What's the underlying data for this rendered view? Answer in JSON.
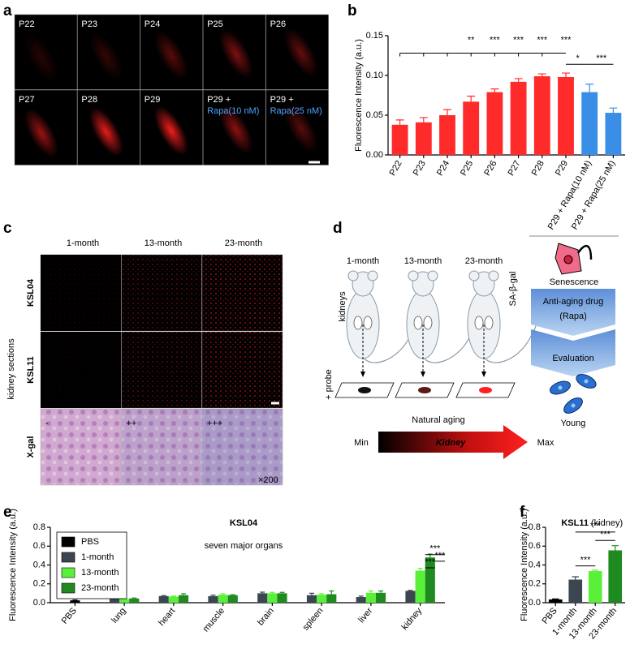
{
  "figure": {
    "panel_labels": [
      "a",
      "b",
      "c",
      "d",
      "e",
      "f"
    ],
    "panel_a": {
      "tiles": [
        [
          "P22"
        ],
        [
          "P23"
        ],
        [
          "P24"
        ],
        [
          "P25"
        ],
        [
          "P26"
        ],
        [
          "P27"
        ],
        [
          "P28"
        ],
        [
          "P29"
        ],
        [
          "P29 +",
          "Rapa(10 nM)"
        ],
        [
          "P29 +",
          "Rapa(25 nM)"
        ]
      ]
    },
    "panel_c": {
      "columns": [
        "1-month",
        "13-month",
        "23-month"
      ],
      "rows": [
        "KSL04",
        "KSL11",
        "X-gal"
      ],
      "side_label": "kidney sections",
      "xgal_marks": [
        "-",
        "++",
        "+++"
      ],
      "magnification": "×200"
    },
    "panel_d": {
      "columns": [
        "1-month",
        "13-month",
        "23-month"
      ],
      "kidneys": "kidneys",
      "marker": "SA-β-gal",
      "probe": "+ probe",
      "natural_aging": "Natural aging",
      "min": "Min",
      "organ": "Kidney",
      "max": "Max",
      "senescence": "Senescence",
      "drug": "Anti-aging drug",
      "drug_name": "(Rapa)",
      "evaluation": "Evaluation",
      "young": "Young"
    }
  },
  "chart_data": [
    {
      "type": "bar",
      "y_label": "Fluorescence Intensity (a.u.)",
      "categories": [
        "P22",
        "P23",
        "P24",
        "P25",
        "P26",
        "P27",
        "P28",
        "P29",
        "P29 + Rapa(10 nM)",
        "P29 + Rapa(25 nM)"
      ],
      "values": [
        0.038,
        0.041,
        0.05,
        0.067,
        0.079,
        0.092,
        0.099,
        0.098,
        0.079,
        0.053
      ],
      "errors": [
        0.006,
        0.006,
        0.007,
        0.007,
        0.004,
        0.004,
        0.003,
        0.005,
        0.01,
        0.006
      ],
      "colors": [
        "#ff2b2b",
        "#ff2b2b",
        "#ff2b2b",
        "#ff2b2b",
        "#ff2b2b",
        "#ff2b2b",
        "#ff2b2b",
        "#ff2b2b",
        "#3a8ee6",
        "#3a8ee6"
      ],
      "ylim": [
        0,
        0.15
      ],
      "yticks": [
        {
          "value": 0,
          "label": "0.00"
        },
        {
          "value": 0.05,
          "label": "0.05"
        },
        {
          "value": 0.1,
          "label": "0.10"
        },
        {
          "value": 0.15,
          "label": "0.15"
        }
      ],
      "annotations": [
        "**",
        "***",
        "***",
        "***",
        "***",
        "*",
        "***"
      ]
    },
    {
      "type": "grouped_bar",
      "title": "KSL04",
      "subtitle": "seven major organs",
      "y_label": "Fluorescence Intensity (a.u.)",
      "categories": [
        "PBS",
        "lung",
        "heart",
        "muscle",
        "brain",
        "spleen",
        "liver",
        "kidney"
      ],
      "series": [
        {
          "name": "PBS",
          "color": "#000000",
          "values": [
            0.025,
            null,
            null,
            null,
            null,
            null,
            null,
            null
          ],
          "errors": [
            0.003,
            null,
            null,
            null,
            null,
            null,
            null,
            null
          ]
        },
        {
          "name": "1-month",
          "color": "#3b4650",
          "values": [
            null,
            0.06,
            0.07,
            0.07,
            0.1,
            0.08,
            0.06,
            0.125
          ],
          "errors": [
            null,
            0.01,
            0.005,
            0.01,
            0.012,
            0.02,
            0.01,
            0.005
          ]
        },
        {
          "name": "13-month",
          "color": "#5af03a",
          "values": [
            null,
            0.04,
            0.065,
            0.085,
            0.1,
            0.085,
            0.105,
            0.34
          ],
          "errors": [
            null,
            0.005,
            0.005,
            0.01,
            0.01,
            0.01,
            0.02,
            0.025
          ]
        },
        {
          "name": "23-month",
          "color": "#1f8a1f",
          "values": [
            null,
            0.045,
            0.08,
            0.08,
            0.1,
            0.09,
            0.105,
            0.48
          ],
          "errors": [
            null,
            0.005,
            0.015,
            0.005,
            0.01,
            0.035,
            0.02,
            0.035
          ]
        }
      ],
      "ylim": [
        0,
        0.8
      ],
      "yticks": [
        {
          "value": 0,
          "label": "0.0"
        },
        0.2,
        0.4,
        0.6,
        0.8
      ],
      "legend": "upper left",
      "annotations": [
        "***",
        "***",
        "***"
      ]
    },
    {
      "type": "bar",
      "title": "KSL11",
      "subtitle": "(kidney)",
      "y_label": "Fluorescence Intensity (a.u.)",
      "categories": [
        "PBS",
        "1-month",
        "13-month",
        "23-month"
      ],
      "values": [
        0.035,
        0.245,
        0.335,
        0.555
      ],
      "errors": [
        0.005,
        0.03,
        0.01,
        0.05
      ],
      "colors": [
        "#000000",
        "#3b4650",
        "#5af03a",
        "#1f8a1f"
      ],
      "ylim": [
        0,
        0.8
      ],
      "yticks": [
        {
          "value": 0,
          "label": "0.0"
        },
        0.2,
        0.4,
        0.6,
        0.8
      ],
      "annotations": [
        "***",
        "***",
        "***"
      ]
    }
  ]
}
